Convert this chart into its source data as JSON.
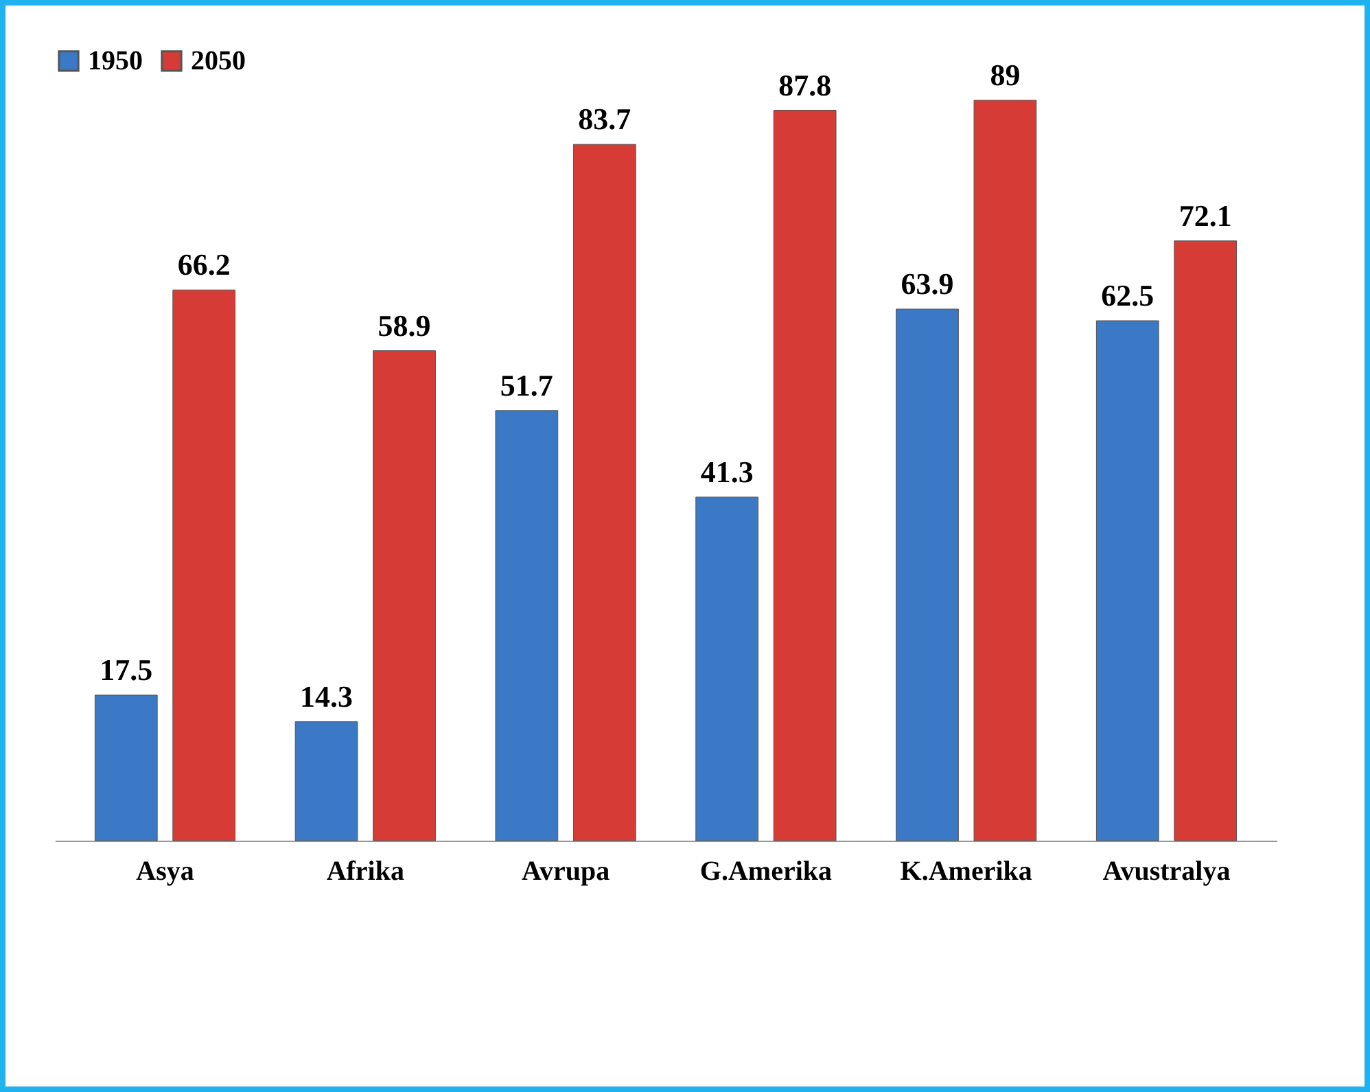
{
  "chart_data": {
    "type": "bar",
    "categories": [
      "Asya",
      "Afrika",
      "Avrupa",
      "G.Amerika",
      "K.Amerika",
      "Avustralya"
    ],
    "series": [
      {
        "name": "1950",
        "color": "#3b78c6",
        "values": [
          17.5,
          14.3,
          51.7,
          41.3,
          63.9,
          62.5
        ]
      },
      {
        "name": "2050",
        "color": "#d63b36",
        "values": [
          66.2,
          58.9,
          83.7,
          87.8,
          89,
          72.1
        ]
      }
    ],
    "data_labels": true,
    "legend": "top",
    "grid": false,
    "tick_labels": "x"
  }
}
